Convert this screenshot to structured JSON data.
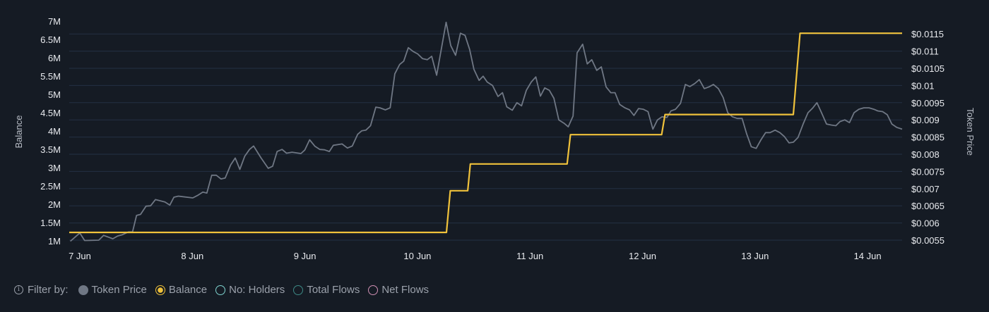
{
  "chart_data": {
    "type": "line",
    "x_unit": "days since 7 Jun 00:00",
    "x_ticks": [
      {
        "t": 0,
        "label": "7 Jun"
      },
      {
        "t": 1,
        "label": "8 Jun"
      },
      {
        "t": 2,
        "label": "9 Jun"
      },
      {
        "t": 3,
        "label": "10 Jun"
      },
      {
        "t": 4,
        "label": "11 Jun"
      },
      {
        "t": 5,
        "label": "12 Jun"
      },
      {
        "t": 6,
        "label": "13 Jun"
      },
      {
        "t": 7,
        "label": "14 Jun"
      }
    ],
    "xlim": [
      -0.094,
      7.307
    ],
    "left_axis": {
      "title": "Balance",
      "unit": "millions",
      "ylim": [
        1,
        7
      ],
      "ticks": [
        {
          "v": 7,
          "label": "7M"
        },
        {
          "v": 6.5,
          "label": "6.5M"
        },
        {
          "v": 6,
          "label": "6M"
        },
        {
          "v": 5.5,
          "label": "5.5M"
        },
        {
          "v": 5,
          "label": "5M"
        },
        {
          "v": 4.5,
          "label": "4.5M"
        },
        {
          "v": 4,
          "label": "4M"
        },
        {
          "v": 3.5,
          "label": "3.5M"
        },
        {
          "v": 3,
          "label": "3M"
        },
        {
          "v": 2.5,
          "label": "2.5M"
        },
        {
          "v": 2,
          "label": "2M"
        },
        {
          "v": 1.5,
          "label": "1.5M"
        },
        {
          "v": 1,
          "label": "1M"
        }
      ]
    },
    "right_axis": {
      "title": "Token Price",
      "ylim": [
        0.0055,
        0.0115
      ],
      "ticks": [
        {
          "v": 0.0115,
          "label": "$0.0115"
        },
        {
          "v": 0.011,
          "label": "$0.011"
        },
        {
          "v": 0.0105,
          "label": "$0.0105"
        },
        {
          "v": 0.01,
          "label": "$0.01"
        },
        {
          "v": 0.0095,
          "label": "$0.0095"
        },
        {
          "v": 0.009,
          "label": "$0.009"
        },
        {
          "v": 0.0085,
          "label": "$0.0085"
        },
        {
          "v": 0.008,
          "label": "$0.008"
        },
        {
          "v": 0.0075,
          "label": "$0.0075"
        },
        {
          "v": 0.007,
          "label": "$0.007"
        },
        {
          "v": 0.0065,
          "label": "$0.0065"
        },
        {
          "v": 0.006,
          "label": "$0.006"
        },
        {
          "v": 0.0055,
          "label": "$0.0055"
        }
      ]
    },
    "grid": true,
    "series": [
      {
        "name": "Token Price",
        "axis": "right",
        "color": "#6f7784",
        "points": [
          [
            -0.084,
            0.00547
          ],
          [
            0,
            0.00571
          ],
          [
            0.043,
            0.00549
          ],
          [
            0.168,
            0.0055
          ],
          [
            0.211,
            0.00564
          ],
          [
            0.293,
            0.00554
          ],
          [
            0.336,
            0.00562
          ],
          [
            0.379,
            0.00566
          ],
          [
            0.432,
            0.00574
          ],
          [
            0.468,
            0.00574
          ],
          [
            0.504,
            0.00622
          ],
          [
            0.54,
            0.00625
          ],
          [
            0.588,
            0.00649
          ],
          [
            0.629,
            0.0065
          ],
          [
            0.672,
            0.00668
          ],
          [
            0.756,
            0.00661
          ],
          [
            0.8,
            0.00652
          ],
          [
            0.836,
            0.00675
          ],
          [
            0.876,
            0.00678
          ],
          [
            1.004,
            0.00673
          ],
          [
            1.045,
            0.0068
          ],
          [
            1.093,
            0.0069
          ],
          [
            1.129,
            0.00687
          ],
          [
            1.172,
            0.00739
          ],
          [
            1.213,
            0.00739
          ],
          [
            1.254,
            0.00728
          ],
          [
            1.292,
            0.00731
          ],
          [
            1.34,
            0.00769
          ],
          [
            1.381,
            0.00789
          ],
          [
            1.422,
            0.00756
          ],
          [
            1.465,
            0.00794
          ],
          [
            1.508,
            0.00814
          ],
          [
            1.544,
            0.00824
          ],
          [
            1.609,
            0.0079
          ],
          [
            1.674,
            0.00759
          ],
          [
            1.713,
            0.00765
          ],
          [
            1.753,
            0.00808
          ],
          [
            1.797,
            0.00814
          ],
          [
            1.837,
            0.00803
          ],
          [
            1.886,
            0.00806
          ],
          [
            1.965,
            0.00802
          ],
          [
            1.999,
            0.00812
          ],
          [
            2.042,
            0.00842
          ],
          [
            2.09,
            0.00823
          ],
          [
            2.133,
            0.00814
          ],
          [
            2.174,
            0.00813
          ],
          [
            2.217,
            0.00808
          ],
          [
            2.253,
            0.00826
          ],
          [
            2.33,
            0.0083
          ],
          [
            2.378,
            0.00818
          ],
          [
            2.421,
            0.00824
          ],
          [
            2.469,
            0.00858
          ],
          [
            2.505,
            0.00868
          ],
          [
            2.542,
            0.0087
          ],
          [
            2.583,
            0.00883
          ],
          [
            2.63,
            0.00937
          ],
          [
            2.667,
            0.00935
          ],
          [
            2.715,
            0.00929
          ],
          [
            2.758,
            0.00935
          ],
          [
            2.799,
            0.01034
          ],
          [
            2.842,
            0.01061
          ],
          [
            2.878,
            0.01071
          ],
          [
            2.919,
            0.0111
          ],
          [
            2.962,
            0.01099
          ],
          [
            3.002,
            0.01092
          ],
          [
            3.046,
            0.01078
          ],
          [
            3.087,
            0.01075
          ],
          [
            3.127,
            0.01085
          ],
          [
            3.171,
            0.0103
          ],
          [
            3.255,
            0.01184
          ],
          [
            3.296,
            0.01116
          ],
          [
            3.339,
            0.01088
          ],
          [
            3.382,
            0.01152
          ],
          [
            3.423,
            0.01146
          ],
          [
            3.464,
            0.01105
          ],
          [
            3.502,
            0.01047
          ],
          [
            3.548,
            0.01015
          ],
          [
            3.584,
            0.01027
          ],
          [
            3.62,
            0.0101
          ],
          [
            3.667,
            0.01
          ],
          [
            3.716,
            0.00968
          ],
          [
            3.756,
            0.00979
          ],
          [
            3.794,
            0.00938
          ],
          [
            3.843,
            0.00928
          ],
          [
            3.884,
            0.0095
          ],
          [
            3.925,
            0.00941
          ],
          [
            3.968,
            0.00986
          ],
          [
            4.011,
            0.0101
          ],
          [
            4.052,
            0.01025
          ],
          [
            4.093,
            0.00969
          ],
          [
            4.131,
            0.00993
          ],
          [
            4.172,
            0.00986
          ],
          [
            4.213,
            0.00963
          ],
          [
            4.256,
            0.009
          ],
          [
            4.304,
            0.0089
          ],
          [
            4.34,
            0.0088
          ],
          [
            4.383,
            0.00911
          ],
          [
            4.419,
            0.01095
          ],
          [
            4.468,
            0.0112
          ],
          [
            4.509,
            0.01063
          ],
          [
            4.549,
            0.01075
          ],
          [
            4.593,
            0.01044
          ],
          [
            4.634,
            0.01054
          ],
          [
            4.677,
            0.00996
          ],
          [
            4.718,
            0.00979
          ],
          [
            4.756,
            0.00979
          ],
          [
            4.797,
            0.00945
          ],
          [
            4.844,
            0.00935
          ],
          [
            4.885,
            0.00929
          ],
          [
            4.924,
            0.00913
          ],
          [
            4.965,
            0.00933
          ],
          [
            5.006,
            0.00931
          ],
          [
            5.049,
            0.00924
          ],
          [
            5.092,
            0.00873
          ],
          [
            5.133,
            0.009
          ],
          [
            5.174,
            0.00909
          ],
          [
            5.217,
            0.00907
          ],
          [
            5.253,
            0.00926
          ],
          [
            5.294,
            0.00931
          ],
          [
            5.338,
            0.00948
          ],
          [
            5.381,
            0.01003
          ],
          [
            5.421,
            0.00997
          ],
          [
            5.465,
            0.01006
          ],
          [
            5.505,
            0.01017
          ],
          [
            5.549,
            0.00991
          ],
          [
            5.59,
            0.00996
          ],
          [
            5.63,
            0.01003
          ],
          [
            5.674,
            0.00991
          ],
          [
            5.717,
            0.00965
          ],
          [
            5.758,
            0.00921
          ],
          [
            5.799,
            0.00909
          ],
          [
            5.842,
            0.00904
          ],
          [
            5.885,
            0.00904
          ],
          [
            5.926,
            0.00859
          ],
          [
            5.967,
            0.00822
          ],
          [
            6.01,
            0.00817
          ],
          [
            6.053,
            0.00842
          ],
          [
            6.094,
            0.00863
          ],
          [
            6.134,
            0.00863
          ],
          [
            6.178,
            0.0087
          ],
          [
            6.221,
            0.00863
          ],
          [
            6.262,
            0.00851
          ],
          [
            6.302,
            0.00833
          ],
          [
            6.341,
            0.00835
          ],
          [
            6.382,
            0.00849
          ],
          [
            6.43,
            0.0089
          ],
          [
            6.471,
            0.00921
          ],
          [
            6.514,
            0.00935
          ],
          [
            6.55,
            0.0095
          ],
          [
            6.591,
            0.00921
          ],
          [
            6.635,
            0.00888
          ],
          [
            6.677,
            0.00885
          ],
          [
            6.718,
            0.00883
          ],
          [
            6.755,
            0.00895
          ],
          [
            6.798,
            0.009
          ],
          [
            6.839,
            0.00892
          ],
          [
            6.88,
            0.00921
          ],
          [
            6.923,
            0.00931
          ],
          [
            6.966,
            0.00935
          ],
          [
            7.014,
            0.00935
          ],
          [
            7.055,
            0.00931
          ],
          [
            7.091,
            0.00926
          ],
          [
            7.134,
            0.00924
          ],
          [
            7.175,
            0.00915
          ],
          [
            7.216,
            0.00888
          ],
          [
            7.259,
            0.00878
          ],
          [
            7.307,
            0.00873
          ]
        ]
      },
      {
        "name": "Balance",
        "axis": "left",
        "color": "#f0c23b",
        "points": [
          [
            -0.094,
            1.23
          ],
          [
            3.258,
            1.23
          ],
          [
            3.292,
            2.37
          ],
          [
            3.447,
            2.37
          ],
          [
            3.47,
            3.1
          ],
          [
            4.33,
            3.1
          ],
          [
            4.36,
            3.9
          ],
          [
            5.17,
            3.9
          ],
          [
            5.2,
            4.45
          ],
          [
            6.34,
            4.45
          ],
          [
            6.4,
            6.67
          ],
          [
            7.307,
            6.67
          ]
        ]
      }
    ]
  },
  "legend": {
    "filter_label": "Filter by:",
    "info_icon": "i",
    "items": [
      {
        "label": "Token Price",
        "color": "#6f7784",
        "state": "filled"
      },
      {
        "label": "Balance",
        "color": "#f0c23b",
        "state": "selected"
      },
      {
        "label": "No: Holders",
        "color": "#7fd3cf",
        "state": "off"
      },
      {
        "label": "Total Flows",
        "color": "#3d8a86",
        "state": "off"
      },
      {
        "label": "Net Flows",
        "color": "#d08fb3",
        "state": "off"
      }
    ]
  }
}
